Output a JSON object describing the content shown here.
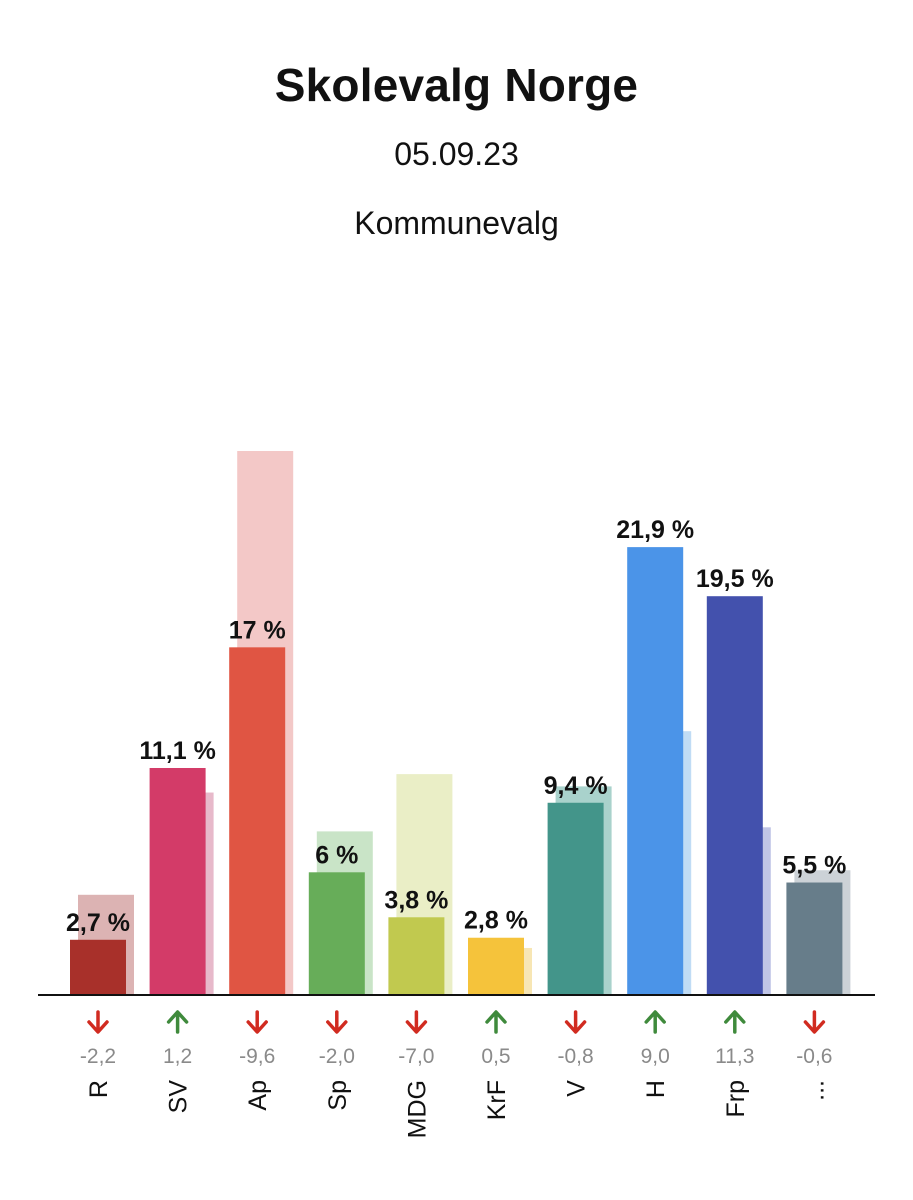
{
  "header": {
    "title": "Skolevalg Norge",
    "date": "05.09.23",
    "subtitle": "Kommunevalg"
  },
  "chart_data": {
    "type": "bar",
    "categories": [
      "R",
      "SV",
      "Ap",
      "Sp",
      "MDG",
      "KrF",
      "V",
      "H",
      "Frp",
      "..."
    ],
    "series": [
      {
        "values": [
          2.7,
          11.1,
          17,
          6,
          3.8,
          2.8,
          9.4,
          21.9,
          19.5,
          5.5
        ]
      },
      {
        "values": [
          4.9,
          9.9,
          26.6,
          8.0,
          10.8,
          2.3,
          10.2,
          12.9,
          8.2,
          6.1
        ]
      }
    ],
    "value_labels": [
      "2,7 %",
      "11,1 %",
      "17 %",
      "6 %",
      "3,8 %",
      "2,8 %",
      "9,4 %",
      "21,9 %",
      "19,5 %",
      "5,5 %"
    ],
    "changes": [
      -2.2,
      1.2,
      -9.6,
      -2.0,
      -7.0,
      0.5,
      -0.8,
      9.0,
      11.3,
      -0.6
    ],
    "change_labels": [
      "-2,2",
      "1,2",
      "-9,6",
      "-2,0",
      "-7,0",
      "0,5",
      "-0,8",
      "9,0",
      "11,3",
      "-0,6"
    ],
    "colors": [
      "#a8302a",
      "#d33b68",
      "#e05543",
      "#67ad59",
      "#c1c94f",
      "#f5c33b",
      "#43958a",
      "#4b94e8",
      "#4351ad",
      "#677d8a"
    ],
    "prev_colors": [
      "#dcb3b3",
      "#e7b9ca",
      "#f3c8c7",
      "#c9e4c7",
      "#eaeec6",
      "#f7e6b4",
      "#a9d2cc",
      "#c0dcf5",
      "#c0c5e6",
      "#ccd2d7"
    ],
    "arrow_colors": {
      "up": "#3f8a3c",
      "down": "#d12b20"
    },
    "ylim": [
      0,
      27
    ]
  }
}
